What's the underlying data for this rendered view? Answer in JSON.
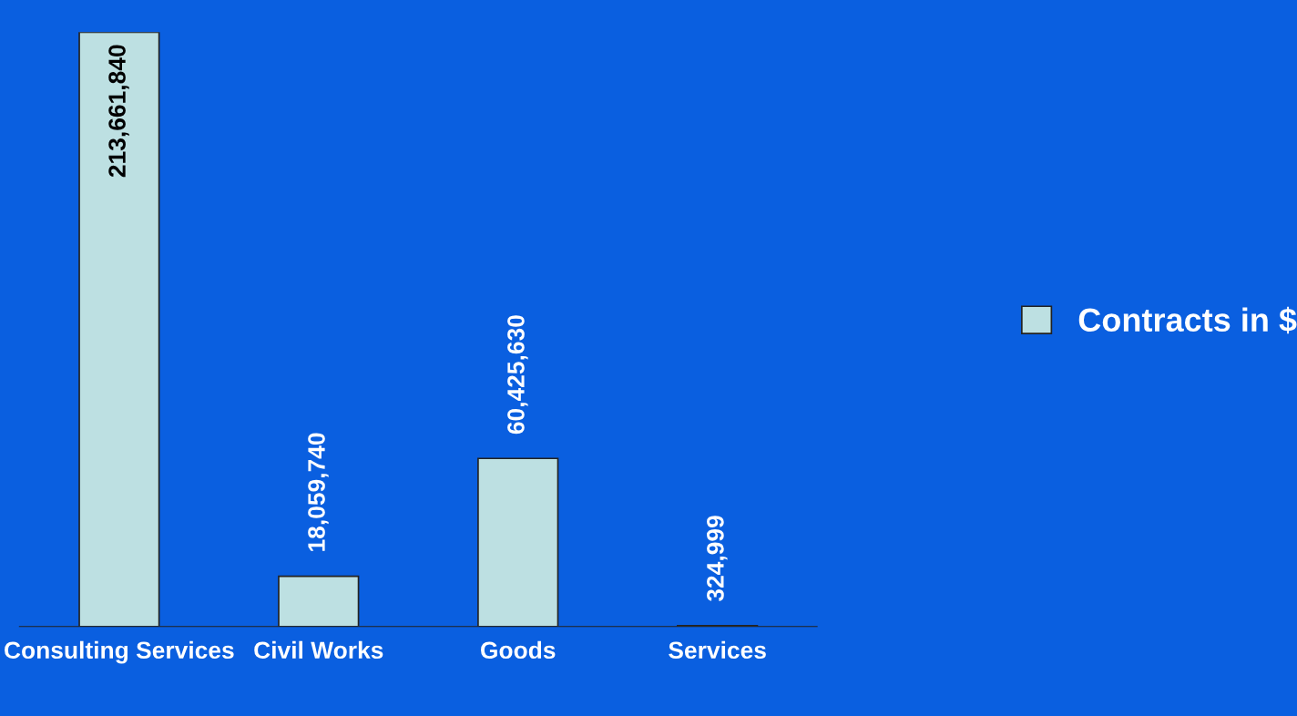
{
  "chart_data": {
    "type": "bar",
    "categories": [
      "Consulting Services",
      "Civil Works",
      "Goods",
      "Services"
    ],
    "series": [
      {
        "name": "Contracts in $",
        "color": "#bde0e2",
        "values": [
          213661840,
          18059740,
          60425630,
          324999
        ],
        "value_labels": [
          "213,661,840",
          "18,059,740",
          "60,425,630",
          "324,999"
        ]
      }
    ],
    "legend": "right",
    "grid": false
  }
}
